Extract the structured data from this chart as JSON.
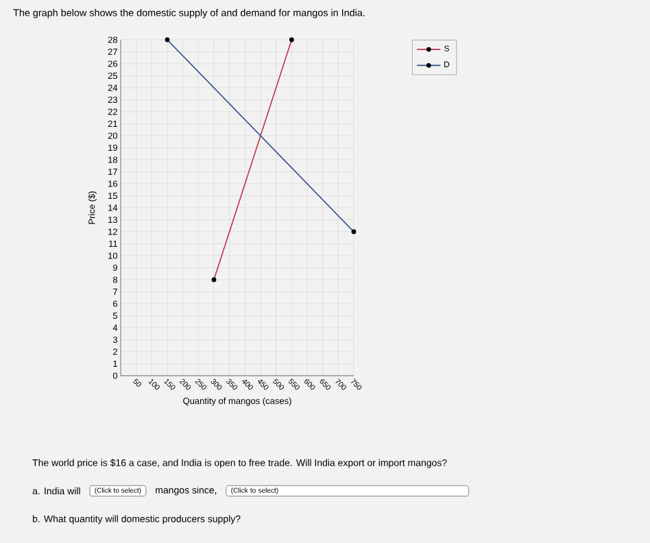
{
  "chart_data": {
    "type": "line",
    "title": "The graph below shows the domestic supply of and demand for mangos in India.",
    "xlabel": "Quantity of mangos (cases)",
    "ylabel": "Price ($)",
    "series": [
      {
        "name": "S",
        "color": "#c0304a",
        "x": [
          300,
          550
        ],
        "values": [
          8,
          28
        ]
      },
      {
        "name": "D",
        "color": "#2f4a8a",
        "x": [
          150,
          750
        ],
        "values": [
          28,
          12
        ]
      }
    ],
    "xlim": [
      0,
      750
    ],
    "ylim": [
      0,
      28
    ],
    "xticks": [
      50,
      100,
      150,
      200,
      250,
      300,
      350,
      400,
      450,
      500,
      550,
      600,
      650,
      700,
      750
    ],
    "yticks": [
      0,
      1,
      2,
      3,
      4,
      5,
      6,
      7,
      8,
      9,
      10,
      11,
      12,
      13,
      14,
      15,
      16,
      17,
      18,
      19,
      20,
      21,
      22,
      23,
      24,
      25,
      26,
      27,
      28
    ],
    "grid": true,
    "legend": "top right",
    "marker": "circle",
    "line_style": "solid",
    "annotations": [
      "The world price is $16 a case, and India is open to free trade. Will India export or import mangos?",
      "a. India will",
      "(Click to select)",
      "mangos since,",
      "(Click to select)",
      "b. What quantity will domestic producers supply?"
    ]
  }
}
